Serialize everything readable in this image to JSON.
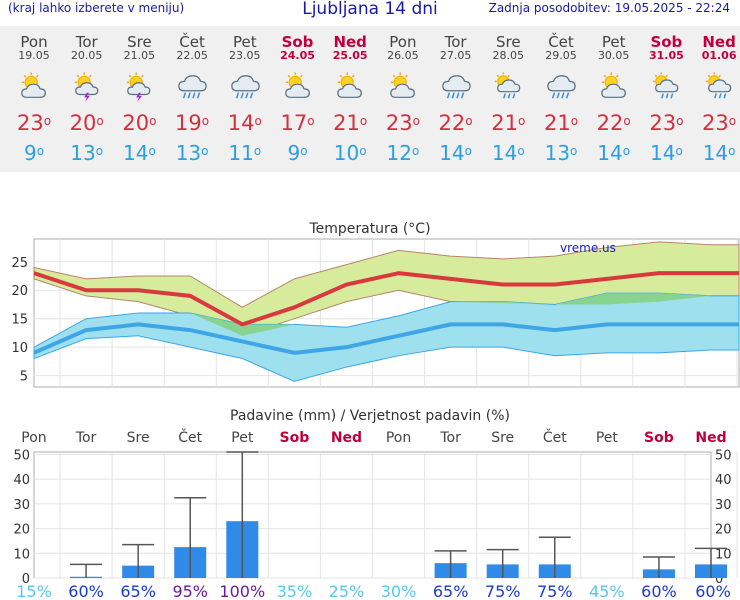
{
  "header": {
    "left_note": "(kraj lahko izberete v meniju)",
    "title": "Ljubljana 14 dni",
    "updated": "Zadnja posodobitev: 19.05.2025 - 22:24"
  },
  "colors": {
    "max_line": "#d8383e",
    "min_line": "#3ea6e6",
    "max_band": "#d6ec9c",
    "min_band": "#9ee0ee",
    "overlap": "#86d286",
    "bar": "#2f8ae8",
    "weekend": "#c0003c"
  },
  "days": [
    {
      "name": "Pon",
      "date": "19.05",
      "icon": "partly-cloudy-icon",
      "max": "23",
      "min": "9",
      "weekend": false
    },
    {
      "name": "Tor",
      "date": "20.05",
      "icon": "thunder-sun-icon",
      "max": "20",
      "min": "13",
      "weekend": false
    },
    {
      "name": "Sre",
      "date": "21.05",
      "icon": "thunder-sun-icon",
      "max": "20",
      "min": "14",
      "weekend": false
    },
    {
      "name": "Čet",
      "date": "22.05",
      "icon": "rain-cloud-icon",
      "max": "19",
      "min": "13",
      "weekend": false
    },
    {
      "name": "Pet",
      "date": "23.05",
      "icon": "rain-cloud-icon",
      "max": "14",
      "min": "11",
      "weekend": false
    },
    {
      "name": "Sob",
      "date": "24.05",
      "icon": "partly-cloudy-icon",
      "max": "17",
      "min": "9",
      "weekend": true
    },
    {
      "name": "Ned",
      "date": "25.05",
      "icon": "partly-cloudy-icon",
      "max": "21",
      "min": "10",
      "weekend": true
    },
    {
      "name": "Pon",
      "date": "26.05",
      "icon": "partly-cloudy-icon",
      "max": "23",
      "min": "12",
      "weekend": false
    },
    {
      "name": "Tor",
      "date": "27.05",
      "icon": "rain-cloud-icon",
      "max": "22",
      "min": "14",
      "weekend": false
    },
    {
      "name": "Sre",
      "date": "28.05",
      "icon": "sun-rain-icon",
      "max": "21",
      "min": "14",
      "weekend": false
    },
    {
      "name": "Čet",
      "date": "29.05",
      "icon": "rain-cloud-icon",
      "max": "21",
      "min": "13",
      "weekend": false
    },
    {
      "name": "Pet",
      "date": "30.05",
      "icon": "partly-cloudy-icon",
      "max": "22",
      "min": "14",
      "weekend": false
    },
    {
      "name": "Sob",
      "date": "31.05",
      "icon": "sun-rain-icon",
      "max": "23",
      "min": "14",
      "weekend": true
    },
    {
      "name": "Ned",
      "date": "01.06",
      "icon": "sun-rain-icon",
      "max": "23",
      "min": "14",
      "weekend": true
    }
  ],
  "chart_data": [
    {
      "type": "line",
      "title": "Temperatura (°C)",
      "watermark": "vreme.us",
      "x": [
        1,
        2,
        3,
        4,
        5,
        6,
        7,
        8,
        9,
        10,
        11,
        12,
        13,
        14
      ],
      "ylim": [
        3,
        29
      ],
      "yticks": [
        5,
        10,
        15,
        20,
        25
      ],
      "series": [
        {
          "name": "Max",
          "values": [
            23,
            20,
            20,
            19,
            14,
            17,
            21,
            23,
            22,
            21,
            21,
            22,
            23,
            23
          ]
        },
        {
          "name": "Max upper",
          "values": [
            24,
            22,
            22.5,
            22.5,
            17,
            22,
            24.5,
            27,
            26,
            25.5,
            26,
            27.5,
            28.5,
            28
          ]
        },
        {
          "name": "Max lower",
          "values": [
            22,
            19,
            18,
            15.5,
            12,
            15,
            18,
            20,
            18,
            17.5,
            17,
            17.5,
            18,
            19
          ]
        },
        {
          "name": "Min",
          "values": [
            9,
            13,
            14,
            13,
            11,
            9,
            10,
            12,
            14,
            14,
            13,
            14,
            14,
            14
          ]
        },
        {
          "name": "Min upper",
          "values": [
            10,
            15,
            16,
            16,
            14,
            14,
            13.5,
            15.5,
            18,
            18,
            17.5,
            19.5,
            19.5,
            19
          ]
        },
        {
          "name": "Min lower",
          "values": [
            8,
            11.5,
            12,
            10,
            8,
            4,
            6.5,
            8.5,
            10,
            10,
            8.5,
            9,
            9,
            9.5
          ]
        }
      ]
    },
    {
      "type": "bar",
      "title": "Padavine (mm) / Verjetnost padavin (%)",
      "categories": [
        "Pon",
        "Tor",
        "Sre",
        "Čet",
        "Pet",
        "Sob",
        "Ned",
        "Pon",
        "Tor",
        "Sre",
        "Čet",
        "Pet",
        "Sob",
        "Ned"
      ],
      "ylim": [
        0,
        51
      ],
      "yticks": [
        0,
        10,
        20,
        30,
        40,
        50
      ],
      "values": [
        0,
        0.5,
        5,
        12.5,
        23,
        0,
        0,
        0,
        6,
        5.5,
        5.5,
        0,
        3.5,
        5.5
      ],
      "error_high": [
        0,
        5.5,
        13.5,
        32.5,
        52,
        0,
        0,
        0,
        11,
        11.5,
        16.5,
        0,
        8.5,
        12
      ],
      "probability": [
        "15%",
        "60%",
        "65%",
        "95%",
        "100%",
        "35%",
        "25%",
        "30%",
        "65%",
        "75%",
        "75%",
        "45%",
        "60%",
        "60%"
      ]
    }
  ]
}
